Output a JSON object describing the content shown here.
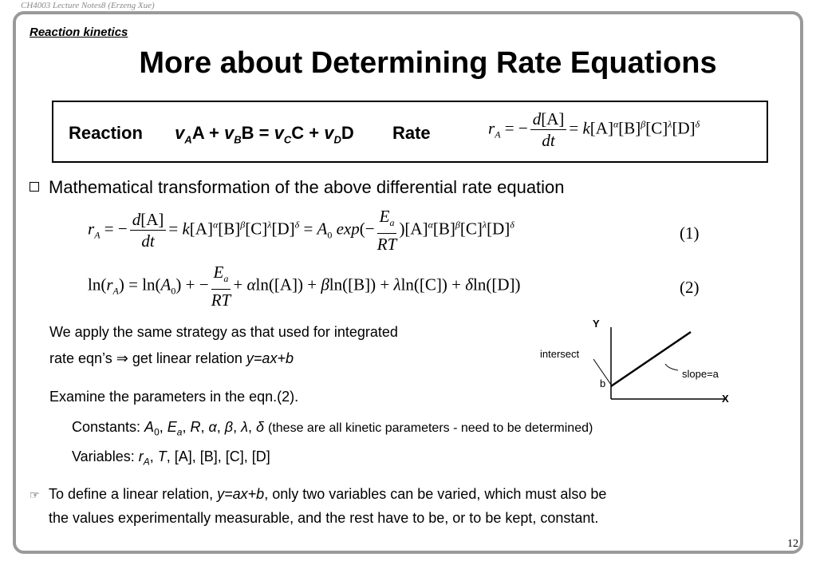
{
  "header": {
    "note": "CH4003 Lecture Notes8 (Erzeng Xue)"
  },
  "section_label": "Reaction kinetics",
  "title": "More about Determining Rate Equations",
  "reaction": {
    "label": "Reaction",
    "rate_label": "Rate"
  },
  "bullet1": "Mathematical transformation of the above differential rate equation",
  "equations": {
    "eq1_number": "(1)",
    "eq2_number": "(2)"
  },
  "paragraph": {
    "line1": "We apply the same strategy as that used for integrated",
    "line2_prefix": "rate eqn’s ",
    "line2_arrow": "⇒",
    "line2_mid": " get linear relation ",
    "linear_relation": "y=ax+b",
    "examine": "Examine the parameters in the eqn.(2).",
    "constants_label": "Constants: ",
    "constants_note": "(these are all kinetic parameters - need to be determined)",
    "variables_label": "Variables: "
  },
  "graph": {
    "y_label": "Y",
    "x_label": "X",
    "intersect_label": "intersect",
    "b_label": "b",
    "slope_label": "slope=a"
  },
  "final_bullet": {
    "icon": "pointing-hand-icon",
    "line1_prefix": "To define a linear relation, ",
    "line1_relation": "y=ax+b",
    "line1_suffix": ", only two variables can be varied, which must also be",
    "line2": "the values experimentally measurable, and the rest have to be, or to be kept, constant."
  },
  "page_number": "12"
}
